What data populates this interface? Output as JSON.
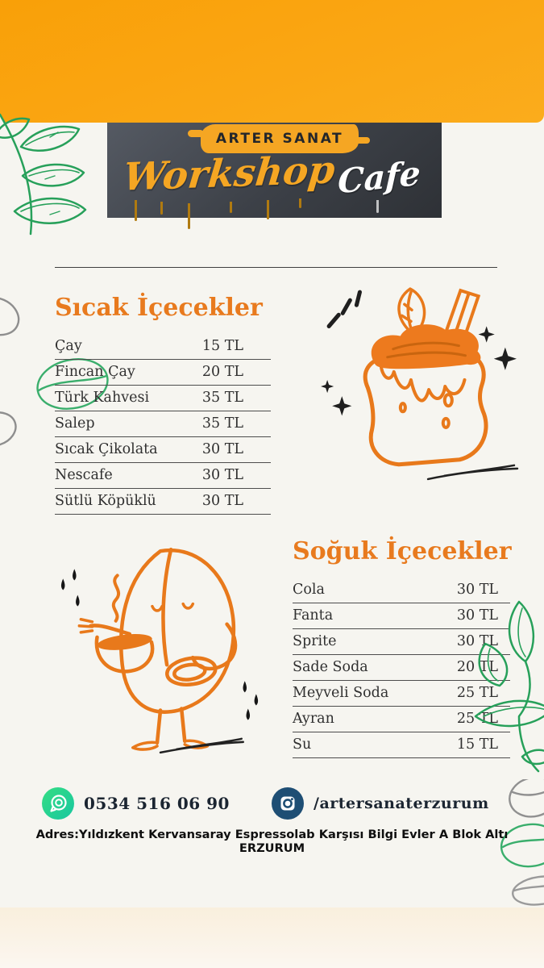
{
  "header": {
    "brand_small": "ARTER SANAT",
    "title_script": "Workshop",
    "title_script2": "Cafe"
  },
  "sections": {
    "hot": {
      "title": "Sıcak İçecekler",
      "items": [
        {
          "name": "Çay",
          "price": "15 TL"
        },
        {
          "name": "Fincan Çay",
          "price": "20 TL"
        },
        {
          "name": "Türk Kahvesi",
          "price": "35 TL"
        },
        {
          "name": "Salep",
          "price": "35 TL"
        },
        {
          "name": "Sıcak Çikolata",
          "price": "30 TL"
        },
        {
          "name": "Nescafe",
          "price": "30 TL"
        },
        {
          "name": "Sütlü Köpüklü",
          "price": "30 TL"
        }
      ]
    },
    "cold": {
      "title": "Soğuk İçecekler",
      "items": [
        {
          "name": "Cola",
          "price": "30 TL"
        },
        {
          "name": "Fanta",
          "price": "30 TL"
        },
        {
          "name": "Sprite",
          "price": "30 TL"
        },
        {
          "name": "Sade Soda",
          "price": "20 TL"
        },
        {
          "name": "Meyveli Soda",
          "price": "25 TL"
        },
        {
          "name": "Ayran",
          "price": "25 TL"
        },
        {
          "name": "Su",
          "price": "15 TL"
        }
      ]
    }
  },
  "footer": {
    "phone": {
      "icon": "whatsapp-icon",
      "text": "0534 516 06 90"
    },
    "instagram": {
      "icon": "instagram-icon",
      "text": "/artersanaterzurum"
    },
    "address": "Adres:Yıldızkent Kervansaray Espressolab Karşısı Bilgi Evler A Blok Altı  ERZURUM"
  },
  "colors": {
    "band_orange": "#FAA613",
    "accent_orange": "#E87A1E",
    "banner_dark": "#3C4046",
    "whatsapp_green": "#25D366",
    "instagram_navy": "#1E4E74",
    "leaf_green": "#27A05A",
    "background": "#F6F5F0",
    "bottom_band": "#F9EFDD"
  }
}
